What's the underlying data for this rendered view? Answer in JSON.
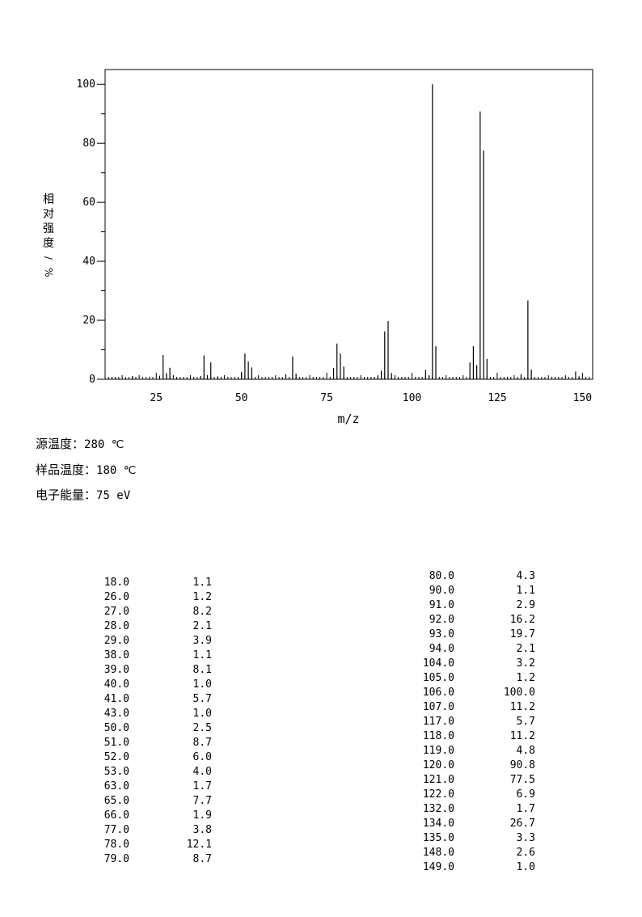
{
  "chart_data": {
    "type": "bar",
    "xlabel": "m/z",
    "ylabel": "相对强度/%",
    "xlim": [
      10,
      153
    ],
    "ylim": [
      0,
      105
    ],
    "xticks": [
      25,
      50,
      75,
      100,
      125,
      150
    ],
    "yticks": [
      0,
      20,
      40,
      60,
      80,
      100
    ],
    "grid": false,
    "peaks": [
      {
        "mz": 18.0,
        "rel": 1.1
      },
      {
        "mz": 26.0,
        "rel": 1.2
      },
      {
        "mz": 27.0,
        "rel": 8.2
      },
      {
        "mz": 28.0,
        "rel": 2.1
      },
      {
        "mz": 29.0,
        "rel": 3.9
      },
      {
        "mz": 38.0,
        "rel": 1.1
      },
      {
        "mz": 39.0,
        "rel": 8.1
      },
      {
        "mz": 40.0,
        "rel": 1.0
      },
      {
        "mz": 41.0,
        "rel": 5.7
      },
      {
        "mz": 43.0,
        "rel": 1.0
      },
      {
        "mz": 50.0,
        "rel": 2.5
      },
      {
        "mz": 51.0,
        "rel": 8.7
      },
      {
        "mz": 52.0,
        "rel": 6.0
      },
      {
        "mz": 53.0,
        "rel": 4.0
      },
      {
        "mz": 63.0,
        "rel": 1.7
      },
      {
        "mz": 65.0,
        "rel": 7.7
      },
      {
        "mz": 66.0,
        "rel": 1.9
      },
      {
        "mz": 77.0,
        "rel": 3.8
      },
      {
        "mz": 78.0,
        "rel": 12.1
      },
      {
        "mz": 79.0,
        "rel": 8.7
      },
      {
        "mz": 80.0,
        "rel": 4.3
      },
      {
        "mz": 90.0,
        "rel": 1.1
      },
      {
        "mz": 91.0,
        "rel": 2.9
      },
      {
        "mz": 92.0,
        "rel": 16.2
      },
      {
        "mz": 93.0,
        "rel": 19.7
      },
      {
        "mz": 94.0,
        "rel": 2.1
      },
      {
        "mz": 104.0,
        "rel": 3.2
      },
      {
        "mz": 105.0,
        "rel": 1.2
      },
      {
        "mz": 106.0,
        "rel": 100.0
      },
      {
        "mz": 107.0,
        "rel": 11.2
      },
      {
        "mz": 117.0,
        "rel": 5.7
      },
      {
        "mz": 118.0,
        "rel": 11.2
      },
      {
        "mz": 119.0,
        "rel": 4.8
      },
      {
        "mz": 120.0,
        "rel": 90.8
      },
      {
        "mz": 121.0,
        "rel": 77.5
      },
      {
        "mz": 122.0,
        "rel": 6.9
      },
      {
        "mz": 132.0,
        "rel": 1.7
      },
      {
        "mz": 134.0,
        "rel": 26.7
      },
      {
        "mz": 135.0,
        "rel": 3.3
      },
      {
        "mz": 148.0,
        "rel": 2.6
      },
      {
        "mz": 149.0,
        "rel": 1.0
      }
    ]
  },
  "conditions": {
    "source_temp_label": "源温度：",
    "source_temp_value": "280 ℃",
    "sample_temp_label": "样品温度：",
    "sample_temp_value": "180 ℃",
    "electron_energy_label": "电子能量：",
    "electron_energy_value": "75 eV"
  },
  "table_left": [
    [
      "18.0",
      "1.1"
    ],
    [
      "26.0",
      "1.2"
    ],
    [
      "27.0",
      "8.2"
    ],
    [
      "28.0",
      "2.1"
    ],
    [
      "29.0",
      "3.9"
    ],
    [
      "38.0",
      "1.1"
    ],
    [
      "39.0",
      "8.1"
    ],
    [
      "40.0",
      "1.0"
    ],
    [
      "41.0",
      "5.7"
    ],
    [
      "43.0",
      "1.0"
    ],
    [
      "50.0",
      "2.5"
    ],
    [
      "51.0",
      "8.7"
    ],
    [
      "52.0",
      "6.0"
    ],
    [
      "53.0",
      "4.0"
    ],
    [
      "63.0",
      "1.7"
    ],
    [
      "65.0",
      "7.7"
    ],
    [
      "66.0",
      "1.9"
    ],
    [
      "77.0",
      "3.8"
    ],
    [
      "78.0",
      "12.1"
    ],
    [
      "79.0",
      "8.7"
    ]
  ],
  "table_right": [
    [
      "80.0",
      "4.3"
    ],
    [
      "90.0",
      "1.1"
    ],
    [
      "91.0",
      "2.9"
    ],
    [
      "92.0",
      "16.2"
    ],
    [
      "93.0",
      "19.7"
    ],
    [
      "94.0",
      "2.1"
    ],
    [
      "104.0",
      "3.2"
    ],
    [
      "105.0",
      "1.2"
    ],
    [
      "106.0",
      "100.0"
    ],
    [
      "107.0",
      "11.2"
    ],
    [
      "117.0",
      "5.7"
    ],
    [
      "118.0",
      "11.2"
    ],
    [
      "119.0",
      "4.8"
    ],
    [
      "120.0",
      "90.8"
    ],
    [
      "121.0",
      "77.5"
    ],
    [
      "122.0",
      "6.9"
    ],
    [
      "132.0",
      "1.7"
    ],
    [
      "134.0",
      "26.7"
    ],
    [
      "135.0",
      "3.3"
    ],
    [
      "148.0",
      "2.6"
    ],
    [
      "149.0",
      "1.0"
    ]
  ]
}
